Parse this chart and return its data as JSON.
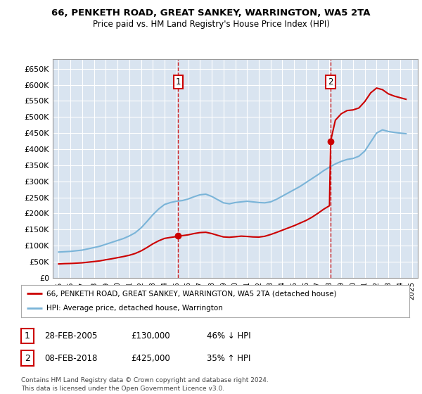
{
  "title1": "66, PENKETH ROAD, GREAT SANKEY, WARRINGTON, WA5 2TA",
  "title2": "Price paid vs. HM Land Registry's House Price Index (HPI)",
  "ylabel_ticks": [
    "£0",
    "£50K",
    "£100K",
    "£150K",
    "£200K",
    "£250K",
    "£300K",
    "£350K",
    "£400K",
    "£450K",
    "£500K",
    "£550K",
    "£600K",
    "£650K"
  ],
  "ytick_vals": [
    0,
    50000,
    100000,
    150000,
    200000,
    250000,
    300000,
    350000,
    400000,
    450000,
    500000,
    550000,
    600000,
    650000
  ],
  "ylim": [
    0,
    680000
  ],
  "xlim_lo": 1994.5,
  "xlim_hi": 2025.5,
  "bg_color": "#d9e4f0",
  "sale1_x": 2005.16,
  "sale1_y": 130000,
  "sale2_x": 2018.1,
  "sale2_y": 425000,
  "legend_label_red": "66, PENKETH ROAD, GREAT SANKEY, WARRINGTON, WA5 2TA (detached house)",
  "legend_label_blue": "HPI: Average price, detached house, Warrington",
  "table_row1": [
    "1",
    "28-FEB-2005",
    "£130,000",
    "46% ↓ HPI"
  ],
  "table_row2": [
    "2",
    "08-FEB-2018",
    "£425,000",
    "35% ↑ HPI"
  ],
  "footer": "Contains HM Land Registry data © Crown copyright and database right 2024.\nThis data is licensed under the Open Government Licence v3.0.",
  "hpi_color": "#7ab4d8",
  "price_color": "#cc0000",
  "hpi_years": [
    1995.0,
    1995.5,
    1996.0,
    1996.5,
    1997.0,
    1997.5,
    1998.0,
    1998.5,
    1999.0,
    1999.5,
    2000.0,
    2000.5,
    2001.0,
    2001.5,
    2002.0,
    2002.5,
    2003.0,
    2003.5,
    2004.0,
    2004.5,
    2005.0,
    2005.5,
    2006.0,
    2006.5,
    2007.0,
    2007.5,
    2008.0,
    2008.5,
    2009.0,
    2009.5,
    2010.0,
    2010.5,
    2011.0,
    2011.5,
    2012.0,
    2012.5,
    2013.0,
    2013.5,
    2014.0,
    2014.5,
    2015.0,
    2015.5,
    2016.0,
    2016.5,
    2017.0,
    2017.5,
    2018.0,
    2018.5,
    2019.0,
    2019.5,
    2020.0,
    2020.5,
    2021.0,
    2021.5,
    2022.0,
    2022.5,
    2023.0,
    2023.5,
    2024.0,
    2024.5
  ],
  "hpi_values": [
    80000,
    81000,
    82000,
    84000,
    86000,
    90000,
    94000,
    98000,
    104000,
    110000,
    116000,
    122000,
    130000,
    140000,
    155000,
    175000,
    196000,
    214000,
    228000,
    234000,
    238000,
    240000,
    245000,
    252000,
    258000,
    260000,
    253000,
    243000,
    233000,
    230000,
    234000,
    236000,
    238000,
    236000,
    234000,
    233000,
    236000,
    244000,
    254000,
    264000,
    274000,
    284000,
    296000,
    308000,
    320000,
    333000,
    344000,
    354000,
    362000,
    368000,
    371000,
    378000,
    394000,
    422000,
    450000,
    460000,
    455000,
    452000,
    450000,
    448000
  ],
  "red_years": [
    1995.0,
    1995.5,
    1996.0,
    1996.5,
    1997.0,
    1997.5,
    1998.0,
    1998.5,
    1999.0,
    1999.5,
    2000.0,
    2000.5,
    2001.0,
    2001.5,
    2002.0,
    2002.5,
    2003.0,
    2003.5,
    2004.0,
    2004.5,
    2005.0,
    2005.16,
    2005.5,
    2006.0,
    2006.5,
    2007.0,
    2007.5,
    2008.0,
    2008.5,
    2009.0,
    2009.5,
    2010.0,
    2010.5,
    2011.0,
    2011.5,
    2012.0,
    2012.5,
    2013.0,
    2013.5,
    2014.0,
    2014.5,
    2015.0,
    2015.5,
    2016.0,
    2016.5,
    2017.0,
    2017.5,
    2018.0,
    2018.1,
    2018.5,
    2019.0,
    2019.5,
    2020.0,
    2020.5,
    2021.0,
    2021.5,
    2022.0,
    2022.5,
    2023.0,
    2023.5,
    2024.0,
    2024.5
  ],
  "red_values": [
    43000,
    44000,
    44500,
    45500,
    46500,
    48500,
    50500,
    52500,
    56000,
    59000,
    62500,
    66000,
    70000,
    75500,
    83500,
    94000,
    105500,
    115000,
    122500,
    125500,
    128000,
    130000,
    131000,
    133500,
    137500,
    140500,
    141500,
    137500,
    132000,
    127000,
    126000,
    127500,
    129500,
    128500,
    127000,
    126500,
    129000,
    134500,
    141000,
    148000,
    155000,
    162000,
    170000,
    178000,
    188000,
    200000,
    213000,
    224000,
    425000,
    490000,
    510000,
    520000,
    522000,
    528000,
    548000,
    575000,
    590000,
    585000,
    572000,
    565000,
    560000,
    555000
  ]
}
